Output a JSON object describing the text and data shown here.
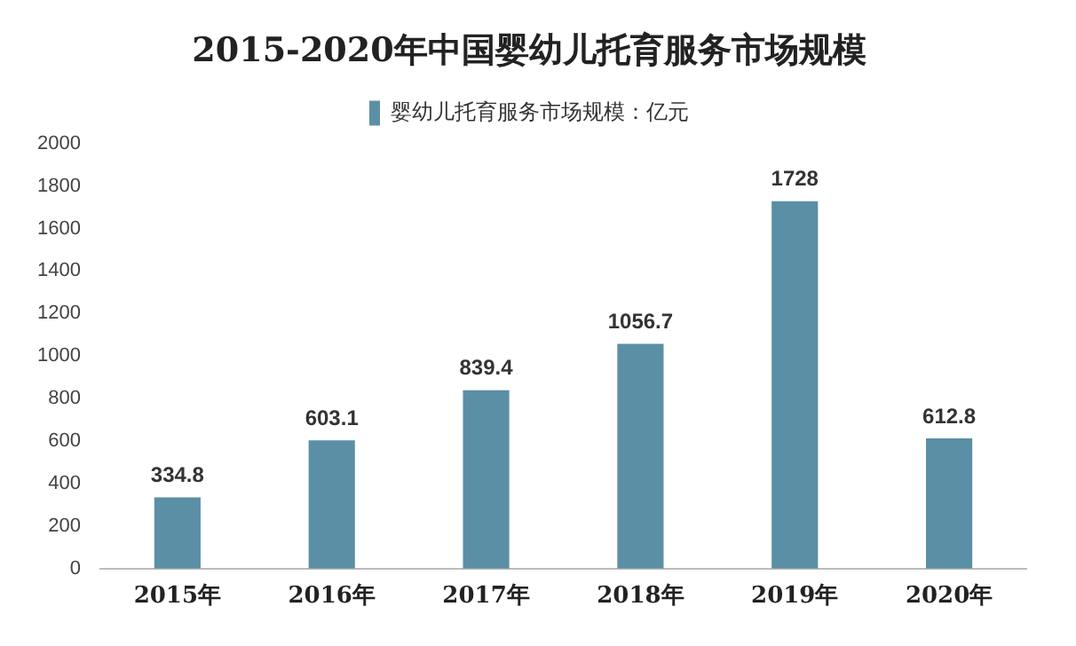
{
  "chart_data": {
    "type": "bar",
    "title": "2015-2020年中国婴幼儿托育服务市场规模",
    "categories": [
      "2015年",
      "2016年",
      "2017年",
      "2018年",
      "2019年",
      "2020年"
    ],
    "series": [
      {
        "name": "婴幼儿托育服务市场规模：亿元",
        "color": "#5b8fa6",
        "values": [
          334.8,
          603.1,
          839.4,
          1056.7,
          1728,
          612.8
        ]
      }
    ],
    "ylim": [
      0,
      2000
    ],
    "yticks": [
      0,
      200,
      400,
      600,
      800,
      1000,
      1200,
      1400,
      1600,
      1800,
      2000
    ],
    "grid": false,
    "legend": "top",
    "data_labels": true
  }
}
